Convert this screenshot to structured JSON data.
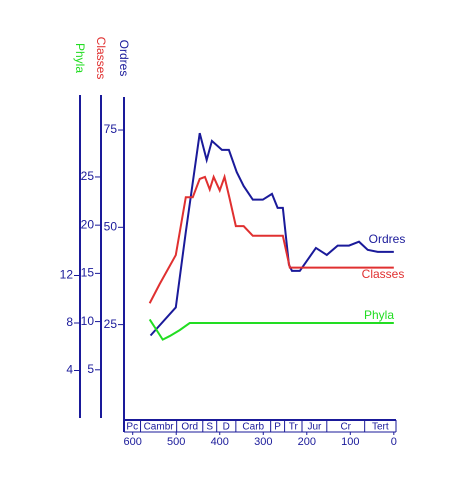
{
  "chart_data": {
    "type": "line",
    "xlim": [
      620,
      -5
    ],
    "xticks": [
      600,
      500,
      400,
      300,
      200,
      100,
      0
    ],
    "periods": [
      {
        "label": "Pc",
        "from": 620,
        "to": 582
      },
      {
        "label": "Cambr",
        "from": 582,
        "to": 499
      },
      {
        "label": "Ord",
        "from": 499,
        "to": 439
      },
      {
        "label": "S",
        "from": 439,
        "to": 407
      },
      {
        "label": "D",
        "from": 407,
        "to": 363
      },
      {
        "label": "Carb",
        "from": 363,
        "to": 283
      },
      {
        "label": "P",
        "from": 283,
        "to": 251
      },
      {
        "label": "Tr",
        "from": 251,
        "to": 211
      },
      {
        "label": "Jur",
        "from": 211,
        "to": 154
      },
      {
        "label": "Cr",
        "from": 154,
        "to": 67
      },
      {
        "label": "Tert",
        "from": 67,
        "to": -5
      }
    ],
    "axes": [
      {
        "label": "Phyla",
        "color": "#22dd22",
        "ylim": [
          0,
          27.2
        ],
        "yticks": [
          4,
          8,
          12
        ]
      },
      {
        "label": "Classes",
        "color": "#e03030",
        "ylim": [
          0,
          33.5
        ],
        "yticks": [
          5,
          10,
          15,
          20,
          25
        ]
      },
      {
        "label": "Ordres",
        "color": "#1a1a9a",
        "ylim": [
          1,
          84
        ],
        "yticks": [
          25,
          50,
          75
        ]
      }
    ],
    "series": [
      {
        "name": "Ordres",
        "color": "#1a1a9a",
        "axis": 2,
        "x": [
          559,
          501,
          478,
          446,
          430,
          418,
          395,
          379,
          361,
          345,
          324,
          301,
          280,
          267,
          255,
          241,
          234,
          216,
          179,
          154,
          129,
          103,
          80,
          60,
          37,
          0
        ],
        "values": [
          22.2,
          29.4,
          48.8,
          74.2,
          67.3,
          72.2,
          69.9,
          69.9,
          64.2,
          60.6,
          57.1,
          57.1,
          58.6,
          55.0,
          55.0,
          40.4,
          38.8,
          38.8,
          44.7,
          42.9,
          45.3,
          45.3,
          46.3,
          44.2,
          43.7,
          43.7
        ]
      },
      {
        "name": "Classes",
        "color": "#e03030",
        "axis": 1,
        "x": [
          561,
          538,
          501,
          478,
          462,
          446,
          434,
          423,
          414,
          400,
          389,
          377,
          363,
          345,
          324,
          303,
          285,
          255,
          239,
          223,
          202,
          0
        ],
        "values": [
          11.9,
          13.9,
          16.9,
          22.9,
          22.9,
          24.8,
          25.0,
          23.7,
          25.0,
          23.6,
          25.0,
          22.7,
          19.9,
          19.9,
          18.9,
          18.9,
          18.9,
          18.9,
          15.6,
          15.6,
          15.6,
          15.6
        ]
      },
      {
        "name": "Phyla",
        "color": "#22dd22",
        "axis": 0,
        "x": [
          561,
          545,
          531,
          515,
          492,
          469,
          0
        ],
        "values": [
          8.3,
          7.4,
          6.6,
          6.9,
          7.4,
          8.0,
          8.0
        ]
      }
    ]
  }
}
